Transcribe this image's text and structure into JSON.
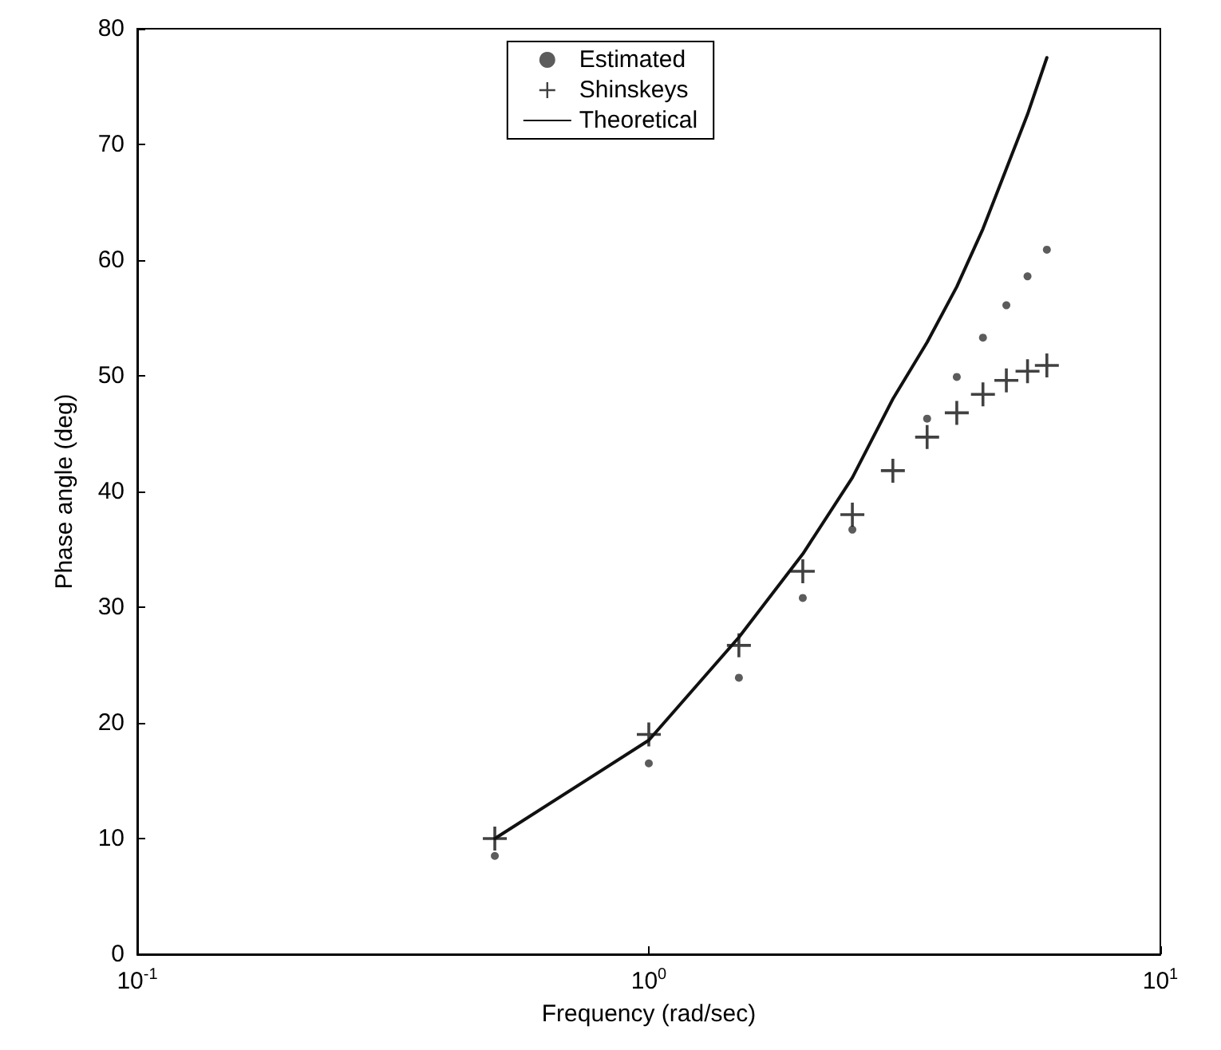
{
  "chart_data": {
    "type": "scatter",
    "xlabel": "Frequency (rad/sec)",
    "ylabel": "Phase angle (deg)",
    "log": "x",
    "xlim": [
      0.1,
      10
    ],
    "xticks": [
      {
        "value": 0.1,
        "label": "10$^{-1}$"
      },
      {
        "value": 1,
        "label": "10$^{0}$"
      },
      {
        "value": 10,
        "label": "10$^{1}$"
      }
    ],
    "ylim": [
      0,
      80
    ],
    "yticks": [
      0,
      10,
      20,
      30,
      40,
      50,
      60,
      70,
      80
    ],
    "grid": false,
    "legend": "top",
    "x": [
      0.5,
      1,
      1.5,
      2,
      2.5,
      3,
      3.5,
      4,
      4.5,
      5,
      5.5,
      6
    ],
    "series": [
      {
        "name": "Estimated",
        "marker": "circle",
        "color": "#333333",
        "values": [
          8.5,
          16.5,
          23.9,
          30.8,
          36.7,
          null,
          46.3,
          49.9,
          53.3,
          56.1,
          58.6,
          60.9
        ]
      },
      {
        "name": "Shinskeys",
        "marker": "cross",
        "color": "#111111",
        "values": [
          10,
          19,
          26.7,
          33.1,
          38,
          41.8,
          44.7,
          46.8,
          48.4,
          49.6,
          50.4,
          50.9
        ]
      },
      {
        "name": "Theoretical",
        "type": "line",
        "marker": "none",
        "line_style": "solid",
        "color": "#111111",
        "values": [
          10,
          18.5,
          27.4,
          34.6,
          41.2,
          48,
          52.9,
          57.7,
          62.7,
          67.9,
          72.6,
          77.5
        ]
      }
    ]
  }
}
